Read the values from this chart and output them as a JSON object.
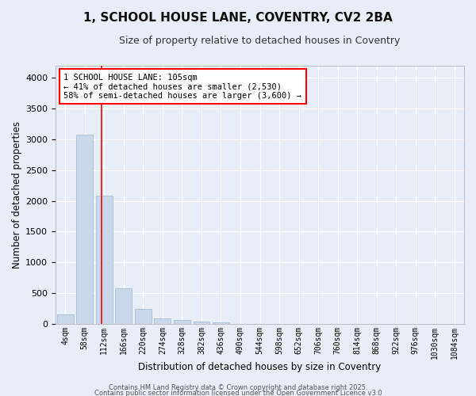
{
  "title": "1, SCHOOL HOUSE LANE, COVENTRY, CV2 2BA",
  "subtitle": "Size of property relative to detached houses in Coventry",
  "xlabel": "Distribution of detached houses by size in Coventry",
  "ylabel": "Number of detached properties",
  "bar_color": "#c8d8ea",
  "bar_edge_color": "#a0b8cc",
  "background_color": "#e8eef8",
  "fig_background_color": "#e8eef8",
  "grid_color": "#ffffff",
  "categories": [
    "4sqm",
    "58sqm",
    "112sqm",
    "166sqm",
    "220sqm",
    "274sqm",
    "328sqm",
    "382sqm",
    "436sqm",
    "490sqm",
    "544sqm",
    "598sqm",
    "652sqm",
    "706sqm",
    "760sqm",
    "814sqm",
    "868sqm",
    "922sqm",
    "976sqm",
    "1030sqm",
    "1084sqm"
  ],
  "values": [
    150,
    3080,
    2080,
    580,
    240,
    90,
    60,
    40,
    20,
    5,
    0,
    0,
    0,
    0,
    0,
    0,
    0,
    0,
    0,
    0,
    0
  ],
  "ylim": [
    0,
    4200
  ],
  "yticks": [
    0,
    500,
    1000,
    1500,
    2000,
    2500,
    3000,
    3500,
    4000
  ],
  "red_line_x": 1.85,
  "annotation_title": "1 SCHOOL HOUSE LANE: 105sqm",
  "annotation_line1": "← 41% of detached houses are smaller (2,530)",
  "annotation_line2": "58% of semi-detached houses are larger (3,600) →",
  "footer1": "Contains HM Land Registry data © Crown copyright and database right 2025.",
  "footer2": "Contains public sector information licensed under the Open Government Licence v3.0"
}
